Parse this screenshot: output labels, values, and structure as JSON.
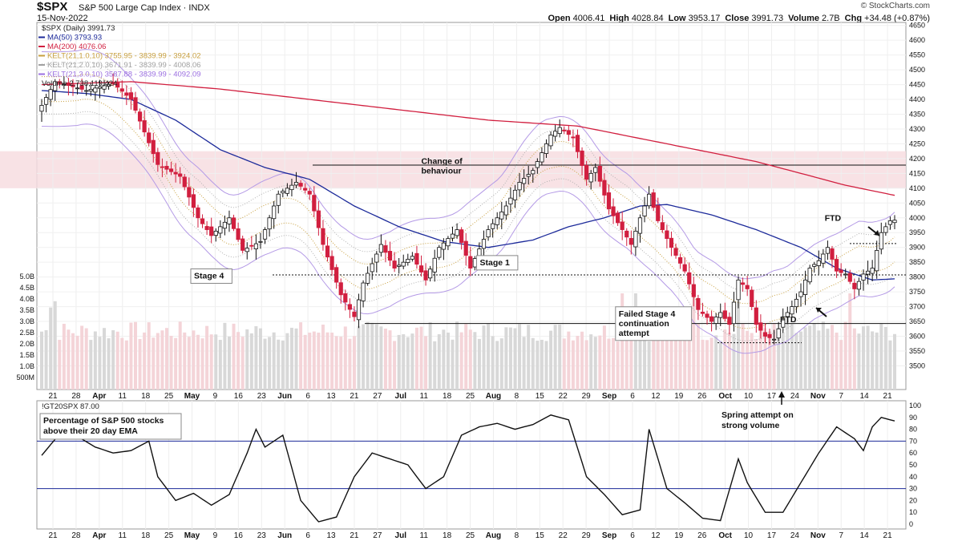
{
  "header": {
    "symbol": "$SPX",
    "name": "S&P 500 Large Cap Index",
    "exchange": "INDX",
    "date": "15-Nov-2022",
    "ohlc": [
      {
        "label": "Open",
        "value": "4006.41"
      },
      {
        "label": "High",
        "value": "4028.84"
      },
      {
        "label": "Low",
        "value": "3953.17"
      },
      {
        "label": "Close",
        "value": "3991.73"
      },
      {
        "label": "Volume",
        "value": "2.7B"
      },
      {
        "label": "Chg",
        "value": "+34.48 (+0.87%)"
      }
    ],
    "brand": "© StockCharts.com"
  },
  "colors": {
    "up": "#ffffff",
    "down": "#d11f3f",
    "ma50": "#1c2a9a",
    "ma200": "#d11f3f",
    "kelt1": "#c8a040",
    "kelt2": "#b0b0b0",
    "kelt3": "#b49ae6",
    "volume_up": "#d8d8d8",
    "volume_down": "#f4d4d8",
    "resistance_zone": "#f7dde0"
  },
  "chart_data": [
    {
      "type": "candlestick",
      "title": "$SPX (Daily) 3991.73",
      "legend": [
        {
          "label": "$SPX (Daily) 3991.73",
          "color": "#111111"
        },
        {
          "label": "MA(50) 3793.93",
          "color": "#1c2a9a"
        },
        {
          "label": "MA(200) 4076.06",
          "color": "#d11f3f"
        },
        {
          "label": "KELT(21,1.0,10) 3755.95 - 3839.99 - 3924.02",
          "color": "#c8a040"
        },
        {
          "label": "KELT(21,2.0,10) 3671.91 - 3839.99 - 4008.06",
          "color": "#a0a0a0"
        },
        {
          "label": "KELT(21,3.0,10) 3587.88 - 3839.99 - 4092.09",
          "color": "#9b6fe0"
        },
        {
          "label": "Volume 2,738,119,424",
          "color": "#111111"
        }
      ],
      "ylim": [
        3420,
        4660
      ],
      "price_ticks": [
        4650,
        4600,
        4550,
        4500,
        4450,
        4400,
        4350,
        4300,
        4250,
        4200,
        4150,
        4100,
        4050,
        4000,
        3950,
        3900,
        3850,
        3800,
        3750,
        3700,
        3650,
        3600,
        3550,
        3500
      ],
      "volume_ticks": [
        "5.0B",
        "4.5B",
        "4.0B",
        "3.5B",
        "3.0B",
        "2.5B",
        "2.0B",
        "1.5B",
        "1.0B",
        "500M"
      ],
      "x_ticks": [
        "21",
        "28",
        "Apr",
        "11",
        "18",
        "25",
        "May",
        "9",
        "16",
        "23",
        "Jun",
        "6",
        "13",
        "21",
        "27",
        "Jul",
        "11",
        "18",
        "25",
        "Aug",
        "8",
        "15",
        "22",
        "29",
        "Sep",
        "6",
        "12",
        "19",
        "26",
        "Oct",
        "10",
        "17",
        "24",
        "Nov",
        "7",
        "14",
        "21"
      ],
      "resistance_zone": [
        4100,
        4225
      ],
      "hlines": [
        {
          "level": 4178,
          "style": "solid"
        },
        {
          "level": 3807,
          "style": "dashed"
        },
        {
          "level": 3643,
          "style": "solid"
        },
        {
          "level": 3913,
          "style": "dashed"
        },
        {
          "level": 3578,
          "style": "dashed"
        }
      ],
      "anchors": [
        {
          "i": 0,
          "v": 4380
        },
        {
          "i": 3,
          "v": 4460
        },
        {
          "i": 10,
          "v": 4430
        },
        {
          "i": 16,
          "v": 4455
        },
        {
          "i": 20,
          "v": 4400
        },
        {
          "i": 26,
          "v": 4180
        },
        {
          "i": 31,
          "v": 4140
        },
        {
          "i": 35,
          "v": 4000
        },
        {
          "i": 38,
          "v": 3940
        },
        {
          "i": 42,
          "v": 4000
        },
        {
          "i": 45,
          "v": 3890
        },
        {
          "i": 49,
          "v": 3920
        },
        {
          "i": 53,
          "v": 4080
        },
        {
          "i": 57,
          "v": 4120
        },
        {
          "i": 60,
          "v": 4080
        },
        {
          "i": 63,
          "v": 3910
        },
        {
          "i": 67,
          "v": 3740
        },
        {
          "i": 70,
          "v": 3666
        },
        {
          "i": 72,
          "v": 3780
        },
        {
          "i": 76,
          "v": 3910
        },
        {
          "i": 79,
          "v": 3830
        },
        {
          "i": 83,
          "v": 3870
        },
        {
          "i": 86,
          "v": 3790
        },
        {
          "i": 89,
          "v": 3900
        },
        {
          "i": 93,
          "v": 3960
        },
        {
          "i": 96,
          "v": 3830
        },
        {
          "i": 100,
          "v": 3960
        },
        {
          "i": 104,
          "v": 4040
        },
        {
          "i": 107,
          "v": 4120
        },
        {
          "i": 110,
          "v": 4160
        },
        {
          "i": 114,
          "v": 4280
        },
        {
          "i": 116,
          "v": 4305
        },
        {
          "i": 119,
          "v": 4270
        },
        {
          "i": 122,
          "v": 4130
        },
        {
          "i": 124,
          "v": 4170
        },
        {
          "i": 127,
          "v": 4030
        },
        {
          "i": 130,
          "v": 3960
        },
        {
          "i": 132,
          "v": 3910
        },
        {
          "i": 134,
          "v": 4000
        },
        {
          "i": 136,
          "v": 4080
        },
        {
          "i": 138,
          "v": 3990
        },
        {
          "i": 141,
          "v": 3900
        },
        {
          "i": 144,
          "v": 3820
        },
        {
          "i": 147,
          "v": 3690
        },
        {
          "i": 150,
          "v": 3650
        },
        {
          "i": 152,
          "v": 3680
        },
        {
          "i": 154,
          "v": 3640
        },
        {
          "i": 156,
          "v": 3790
        },
        {
          "i": 158,
          "v": 3760
        },
        {
          "i": 160,
          "v": 3640
        },
        {
          "i": 162,
          "v": 3600
        },
        {
          "i": 164,
          "v": 3590
        },
        {
          "i": 166,
          "v": 3660
        },
        {
          "i": 168,
          "v": 3700
        },
        {
          "i": 170,
          "v": 3750
        },
        {
          "i": 172,
          "v": 3830
        },
        {
          "i": 174,
          "v": 3855
        },
        {
          "i": 176,
          "v": 3900
        },
        {
          "i": 178,
          "v": 3820
        },
        {
          "i": 180,
          "v": 3810
        },
        {
          "i": 182,
          "v": 3760
        },
        {
          "i": 184,
          "v": 3810
        },
        {
          "i": 186,
          "v": 3830
        },
        {
          "i": 188,
          "v": 3950
        },
        {
          "i": 190,
          "v": 3990
        },
        {
          "i": 191,
          "v": 3992
        }
      ],
      "ma50_anchors": [
        {
          "i": 0,
          "v": 4430
        },
        {
          "i": 10,
          "v": 4420
        },
        {
          "i": 20,
          "v": 4400
        },
        {
          "i": 30,
          "v": 4330
        },
        {
          "i": 40,
          "v": 4230
        },
        {
          "i": 50,
          "v": 4170
        },
        {
          "i": 60,
          "v": 4130
        },
        {
          "i": 70,
          "v": 4040
        },
        {
          "i": 80,
          "v": 3970
        },
        {
          "i": 90,
          "v": 3920
        },
        {
          "i": 100,
          "v": 3900
        },
        {
          "i": 110,
          "v": 3925
        },
        {
          "i": 118,
          "v": 3970
        },
        {
          "i": 126,
          "v": 4000
        },
        {
          "i": 134,
          "v": 4040
        },
        {
          "i": 140,
          "v": 4045
        },
        {
          "i": 150,
          "v": 4010
        },
        {
          "i": 160,
          "v": 3960
        },
        {
          "i": 170,
          "v": 3900
        },
        {
          "i": 178,
          "v": 3830
        },
        {
          "i": 186,
          "v": 3790
        },
        {
          "i": 191,
          "v": 3794
        }
      ],
      "ma200_anchors": [
        {
          "i": 0,
          "v": 4450
        },
        {
          "i": 20,
          "v": 4460
        },
        {
          "i": 40,
          "v": 4435
        },
        {
          "i": 60,
          "v": 4400
        },
        {
          "i": 80,
          "v": 4365
        },
        {
          "i": 100,
          "v": 4330
        },
        {
          "i": 120,
          "v": 4310
        },
        {
          "i": 140,
          "v": 4250
        },
        {
          "i": 160,
          "v": 4190
        },
        {
          "i": 180,
          "v": 4110
        },
        {
          "i": 191,
          "v": 4076
        }
      ],
      "annotations": [
        {
          "text": [
            "Stage 4"
          ],
          "boxed": true,
          "price": 3795,
          "i": 38
        },
        {
          "text": [
            "Change of",
            "behaviour"
          ],
          "boxed": false,
          "price": 4150,
          "i": 90
        },
        {
          "text": [
            "Stage 1"
          ],
          "boxed": true,
          "price": 3840,
          "i": 102
        },
        {
          "text": [
            "Failed Stage 4",
            "continuation",
            "attempt"
          ],
          "boxed": true,
          "price": 3602,
          "i": 137
        },
        {
          "text": [
            "FTD"
          ],
          "boxed": false,
          "price": 3990,
          "i": 177
        },
        {
          "text": [
            "FTD"
          ],
          "boxed": false,
          "price": 3648,
          "i": 167
        }
      ]
    },
    {
      "type": "line",
      "title": "!GT20SPX 87.00",
      "annotation": [
        "Percentage of S&P 500 stocks",
        "above their 20 day EMA"
      ],
      "ylim": [
        0,
        100
      ],
      "y_ticks": [
        100,
        90,
        80,
        70,
        60,
        50,
        40,
        30,
        20,
        10,
        0
      ],
      "reference_lines": [
        70,
        30
      ],
      "anchors": [
        {
          "i": 0,
          "v": 58
        },
        {
          "i": 4,
          "v": 76
        },
        {
          "i": 8,
          "v": 74
        },
        {
          "i": 12,
          "v": 65
        },
        {
          "i": 16,
          "v": 60
        },
        {
          "i": 20,
          "v": 62
        },
        {
          "i": 24,
          "v": 70
        },
        {
          "i": 26,
          "v": 40
        },
        {
          "i": 30,
          "v": 20
        },
        {
          "i": 34,
          "v": 26
        },
        {
          "i": 38,
          "v": 16
        },
        {
          "i": 42,
          "v": 25
        },
        {
          "i": 46,
          "v": 60
        },
        {
          "i": 48,
          "v": 80
        },
        {
          "i": 50,
          "v": 65
        },
        {
          "i": 52,
          "v": 70
        },
        {
          "i": 54,
          "v": 75
        },
        {
          "i": 58,
          "v": 20
        },
        {
          "i": 62,
          "v": 2
        },
        {
          "i": 66,
          "v": 6
        },
        {
          "i": 70,
          "v": 40
        },
        {
          "i": 74,
          "v": 60
        },
        {
          "i": 78,
          "v": 55
        },
        {
          "i": 82,
          "v": 50
        },
        {
          "i": 86,
          "v": 30
        },
        {
          "i": 90,
          "v": 40
        },
        {
          "i": 94,
          "v": 75
        },
        {
          "i": 98,
          "v": 82
        },
        {
          "i": 102,
          "v": 85
        },
        {
          "i": 106,
          "v": 80
        },
        {
          "i": 110,
          "v": 84
        },
        {
          "i": 114,
          "v": 92
        },
        {
          "i": 118,
          "v": 88
        },
        {
          "i": 122,
          "v": 40
        },
        {
          "i": 126,
          "v": 25
        },
        {
          "i": 130,
          "v": 8
        },
        {
          "i": 134,
          "v": 12
        },
        {
          "i": 136,
          "v": 80
        },
        {
          "i": 140,
          "v": 30
        },
        {
          "i": 144,
          "v": 18
        },
        {
          "i": 148,
          "v": 5
        },
        {
          "i": 152,
          "v": 3
        },
        {
          "i": 156,
          "v": 55
        },
        {
          "i": 158,
          "v": 35
        },
        {
          "i": 162,
          "v": 10
        },
        {
          "i": 166,
          "v": 10
        },
        {
          "i": 170,
          "v": 35
        },
        {
          "i": 174,
          "v": 60
        },
        {
          "i": 178,
          "v": 82
        },
        {
          "i": 182,
          "v": 72
        },
        {
          "i": 184,
          "v": 62
        },
        {
          "i": 186,
          "v": 82
        },
        {
          "i": 188,
          "v": 90
        },
        {
          "i": 191,
          "v": 87
        }
      ]
    }
  ],
  "callouts": [
    {
      "text": [
        "Spring attempt on",
        "strong volume"
      ],
      "i": 157
    }
  ]
}
